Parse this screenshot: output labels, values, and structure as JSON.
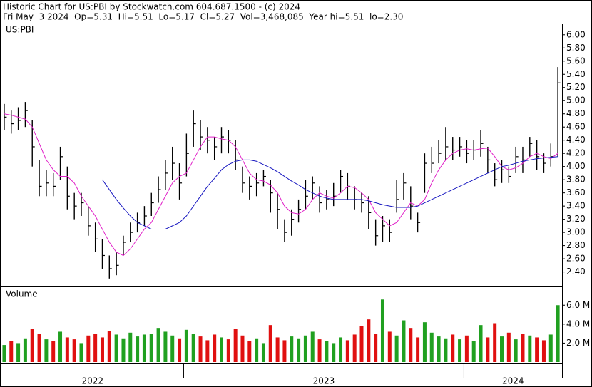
{
  "chart_data": [
    {
      "type": "ohlc",
      "title": "Historic Chart for US:PBI by Stockwatch.com 604.687.1500 - (c) 2024",
      "subtitle": "Fri May  3 2024  Op=5.31  Hi=5.51  Lo=5.17  Cl=5.27  Vol=3,468,085  Year hi=5.51  lo=2.30",
      "label": "US:PBI",
      "color": "#000000",
      "x": [
        2022.36,
        2022.385,
        2022.41,
        2022.435,
        2022.46,
        2022.485,
        2022.51,
        2022.535,
        2022.56,
        2022.585,
        2022.61,
        2022.635,
        2022.66,
        2022.685,
        2022.71,
        2022.735,
        2022.76,
        2022.785,
        2022.81,
        2022.835,
        2022.86,
        2022.885,
        2022.91,
        2022.935,
        2022.96,
        2022.985,
        2023.01,
        2023.035,
        2023.06,
        2023.085,
        2023.11,
        2023.135,
        2023.16,
        2023.185,
        2023.21,
        2023.235,
        2023.26,
        2023.285,
        2023.31,
        2023.335,
        2023.36,
        2023.385,
        2023.41,
        2023.435,
        2023.46,
        2023.485,
        2023.51,
        2023.535,
        2023.56,
        2023.585,
        2023.61,
        2023.635,
        2023.66,
        2023.685,
        2023.71,
        2023.735,
        2023.76,
        2023.785,
        2023.81,
        2023.835,
        2023.86,
        2023.885,
        2023.91,
        2023.935,
        2023.96,
        2023.985,
        2024.01,
        2024.035,
        2024.06,
        2024.085,
        2024.11,
        2024.135,
        2024.16,
        2024.185,
        2024.21,
        2024.235,
        2024.26,
        2024.285,
        2024.31,
        2024.335
      ],
      "high": [
        4.95,
        4.85,
        4.9,
        4.98,
        4.7,
        4.1,
        3.95,
        3.9,
        4.3,
        4.0,
        3.6,
        3.6,
        3.4,
        3.15,
        2.9,
        2.65,
        2.7,
        2.95,
        3.15,
        3.3,
        3.4,
        3.6,
        3.85,
        4.1,
        4.3,
        4.05,
        4.5,
        4.85,
        4.7,
        4.6,
        4.45,
        4.6,
        4.55,
        4.4,
        4.0,
        3.85,
        3.9,
        3.95,
        3.8,
        3.6,
        3.2,
        3.35,
        3.5,
        3.8,
        3.85,
        3.7,
        3.65,
        3.75,
        3.95,
        3.9,
        3.7,
        3.6,
        3.55,
        3.2,
        3.25,
        3.2,
        3.8,
        3.9,
        3.7,
        3.3,
        4.2,
        4.3,
        4.4,
        4.6,
        4.45,
        4.45,
        4.4,
        4.4,
        4.55,
        4.3,
        4.05,
        4.1,
        4.0,
        4.3,
        4.3,
        4.45,
        4.4,
        4.2,
        4.35,
        5.51
      ],
      "low": [
        4.55,
        4.5,
        4.55,
        4.6,
        4.0,
        3.55,
        3.55,
        3.55,
        3.8,
        3.35,
        3.2,
        3.25,
        2.95,
        2.7,
        2.45,
        2.3,
        2.35,
        2.65,
        2.85,
        3.0,
        3.1,
        3.25,
        3.45,
        3.65,
        3.8,
        3.5,
        3.85,
        4.3,
        4.25,
        4.2,
        4.1,
        4.2,
        4.2,
        3.95,
        3.6,
        3.5,
        3.55,
        3.7,
        3.3,
        3.05,
        2.85,
        2.95,
        3.15,
        3.35,
        3.5,
        3.3,
        3.35,
        3.4,
        3.6,
        3.5,
        3.35,
        3.3,
        3.05,
        2.8,
        2.85,
        2.85,
        3.3,
        3.5,
        3.2,
        3.0,
        3.6,
        3.9,
        4.05,
        4.1,
        4.1,
        4.15,
        4.05,
        4.1,
        4.15,
        3.9,
        3.7,
        3.75,
        3.75,
        3.9,
        3.9,
        4.15,
        3.95,
        3.9,
        4.0,
        4.15
      ],
      "close": [
        4.75,
        4.65,
        4.7,
        4.85,
        4.3,
        3.7,
        3.75,
        3.7,
        4.15,
        3.55,
        3.4,
        3.45,
        3.1,
        2.9,
        2.65,
        2.45,
        2.5,
        2.85,
        3.0,
        3.15,
        3.25,
        3.45,
        3.65,
        3.9,
        4.05,
        3.75,
        4.2,
        4.65,
        4.45,
        4.4,
        4.3,
        4.45,
        4.4,
        4.1,
        3.75,
        3.7,
        3.75,
        3.85,
        3.6,
        3.35,
        3.0,
        3.2,
        3.35,
        3.55,
        3.75,
        3.45,
        3.5,
        3.55,
        3.85,
        3.7,
        3.5,
        3.45,
        3.3,
        2.95,
        3.1,
        3.0,
        3.5,
        3.75,
        3.4,
        3.15,
        4.05,
        4.05,
        4.2,
        4.3,
        4.25,
        4.3,
        4.2,
        4.25,
        4.35,
        4.1,
        3.8,
        3.95,
        3.85,
        4.15,
        4.1,
        4.35,
        4.15,
        4.05,
        4.15,
        5.27
      ],
      "lines": [
        {
          "color": "#e020c8",
          "values": [
            4.8,
            4.78,
            4.75,
            4.72,
            4.6,
            4.35,
            4.1,
            3.95,
            3.85,
            3.85,
            3.75,
            3.55,
            3.4,
            3.25,
            3.05,
            2.85,
            2.7,
            2.65,
            2.75,
            2.9,
            3.05,
            3.15,
            3.35,
            3.55,
            3.75,
            3.85,
            3.9,
            4.1,
            4.3,
            4.45,
            4.45,
            4.42,
            4.4,
            4.3,
            4.1,
            3.9,
            3.8,
            3.78,
            3.72,
            3.6,
            3.4,
            3.3,
            3.28,
            3.35,
            3.5,
            3.6,
            3.55,
            3.52,
            3.6,
            3.7,
            3.68,
            3.6,
            3.5,
            3.3,
            3.2,
            3.1,
            3.15,
            3.3,
            3.45,
            3.4,
            3.5,
            3.75,
            3.95,
            4.1,
            4.2,
            4.25,
            4.27,
            4.25,
            4.27,
            4.28,
            4.15,
            4.0,
            3.95,
            3.98,
            4.05,
            4.15,
            4.2,
            4.15,
            4.12,
            4.2
          ]
        },
        {
          "color": "#1818c0",
          "values": [
            null,
            null,
            null,
            null,
            null,
            null,
            null,
            null,
            null,
            null,
            null,
            null,
            null,
            null,
            3.8,
            3.65,
            3.5,
            3.37,
            3.25,
            3.15,
            3.1,
            3.05,
            3.05,
            3.05,
            3.1,
            3.15,
            3.25,
            3.4,
            3.55,
            3.7,
            3.82,
            3.95,
            4.03,
            4.08,
            4.1,
            4.1,
            4.08,
            4.03,
            3.98,
            3.92,
            3.85,
            3.78,
            3.72,
            3.65,
            3.6,
            3.55,
            3.52,
            3.5,
            3.5,
            3.5,
            3.5,
            3.5,
            3.48,
            3.45,
            3.42,
            3.4,
            3.38,
            3.38,
            3.38,
            3.4,
            3.45,
            3.5,
            3.55,
            3.6,
            3.65,
            3.7,
            3.75,
            3.8,
            3.85,
            3.9,
            3.95,
            4.0,
            4.02,
            4.05,
            4.08,
            4.1,
            4.12,
            4.13,
            4.14,
            4.15
          ]
        }
      ],
      "xlim": [
        2022.35,
        2024.35
      ],
      "xticks": [
        2022,
        2023,
        2024
      ],
      "ylim": [
        2.19,
        6.16
      ],
      "yticks": [
        {
          "value": 6,
          "label": "6.00"
        },
        {
          "value": 5.8,
          "label": "5.80"
        },
        {
          "value": 5.6,
          "label": "5.60"
        },
        {
          "value": 5.4,
          "label": "5.40"
        },
        {
          "value": 5.2,
          "label": "5.20"
        },
        {
          "value": 5,
          "label": "5.00"
        },
        {
          "value": 4.8,
          "label": "4.80"
        },
        {
          "value": 4.6,
          "label": "4.60"
        },
        {
          "value": 4.4,
          "label": "4.40"
        },
        {
          "value": 4.2,
          "label": "4.20"
        },
        {
          "value": 4,
          "label": "4.00"
        },
        {
          "value": 3.8,
          "label": "3.80"
        },
        {
          "value": 3.6,
          "label": "3.60"
        },
        {
          "value": 3.4,
          "label": "3.40"
        },
        {
          "value": 3.2,
          "label": "3.20"
        },
        {
          "value": 3,
          "label": "3.00"
        },
        {
          "value": 2.8,
          "label": "2.80"
        },
        {
          "value": 2.6,
          "label": "2.60"
        },
        {
          "value": 2.4,
          "label": "2.40"
        }
      ],
      "grid": false
    },
    {
      "type": "bar",
      "label": "Volume",
      "up_color": "#20a020",
      "down_color": "#e01010",
      "values": [
        1.8,
        2.2,
        2.0,
        2.5,
        3.5,
        3.0,
        2.4,
        2.2,
        3.2,
        2.6,
        2.4,
        2.0,
        2.8,
        3.0,
        2.6,
        3.3,
        2.9,
        2.5,
        3.1,
        2.7,
        2.9,
        3.0,
        3.6,
        3.2,
        2.8,
        2.5,
        3.4,
        3.0,
        2.7,
        2.3,
        2.9,
        2.6,
        2.4,
        3.5,
        2.8,
        2.2,
        2.5,
        2.0,
        3.9,
        2.6,
        2.3,
        2.7,
        2.5,
        2.8,
        3.2,
        2.4,
        2.2,
        2.0,
        2.6,
        2.3,
        2.9,
        3.8,
        4.5,
        3.0,
        6.6,
        3.2,
        2.8,
        4.4,
        3.6,
        2.6,
        4.2,
        3.1,
        2.7,
        2.5,
        2.9,
        2.4,
        2.8,
        2.2,
        3.9,
        2.6,
        4.1,
        2.7,
        3.1,
        2.4,
        3.0,
        2.8,
        2.6,
        2.3,
        2.9,
        6.0
      ],
      "ylim": [
        0,
        7.9
      ],
      "yticks": [
        {
          "value": 6,
          "label": "6.0 M"
        },
        {
          "value": 4,
          "label": "4.0 M"
        },
        {
          "value": 2,
          "label": "2.0 M"
        }
      ],
      "grid": false
    }
  ]
}
